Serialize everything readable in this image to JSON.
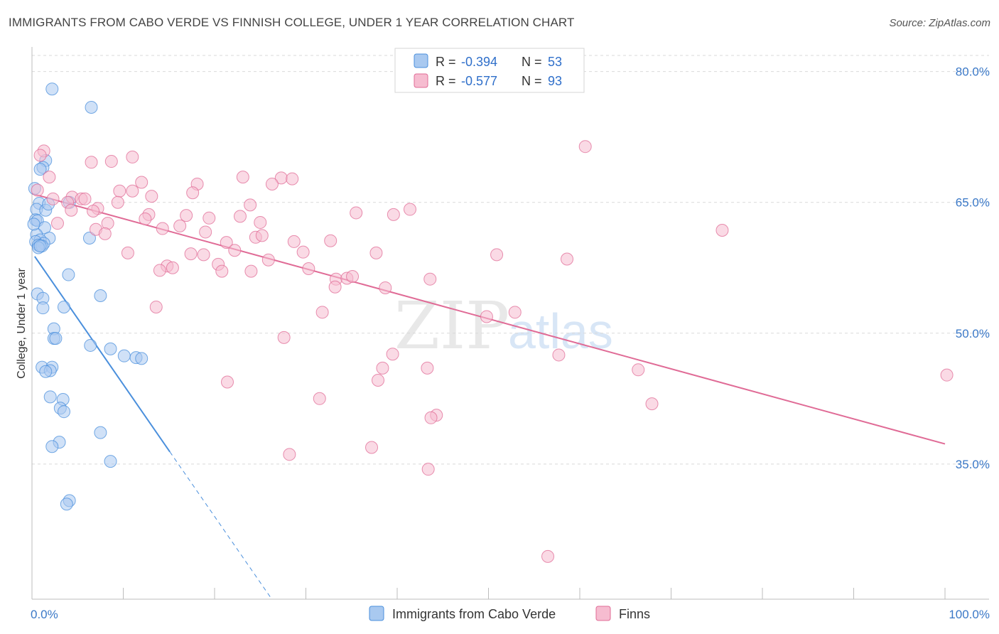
{
  "title": "IMMIGRANTS FROM CABO VERDE VS FINNISH COLLEGE, UNDER 1 YEAR CORRELATION CHART",
  "source": "Source: ZipAtlas.com",
  "watermark": {
    "zip": "ZIP",
    "atlas": "atlas"
  },
  "colors": {
    "blue": "#4a8fdc",
    "blue_fill": "#a9c9f0",
    "pink": "#e06b96",
    "pink_fill": "#f6bcd0",
    "tick": "#3a78c7",
    "grid": "#d9d9d9"
  },
  "legend_top": {
    "rows": [
      {
        "r_label": "R =",
        "r_value": "-0.394",
        "n_label": "N =",
        "n_value": "53",
        "series": "blue"
      },
      {
        "r_label": "R =",
        "r_value": "-0.577",
        "n_label": "N =",
        "n_value": "93",
        "series": "pink"
      }
    ]
  },
  "legend_bottom": [
    {
      "label": "Immigrants from Cabo Verde",
      "series": "blue"
    },
    {
      "label": "Finns",
      "series": "pink"
    }
  ],
  "chart_data": {
    "type": "scatter",
    "title": "IMMIGRANTS FROM CABO VERDE VS FINNISH COLLEGE, UNDER 1 YEAR CORRELATION CHART",
    "xlabel": "",
    "ylabel": "College, Under 1 year",
    "xlim": [
      0,
      100
    ],
    "ylim": [
      19.5,
      82.5
    ],
    "x_tick_labels": [
      {
        "value": 0,
        "label": "0.0%"
      },
      {
        "value": 100,
        "label": "100.0%"
      }
    ],
    "y_ticks": [
      {
        "value": 80,
        "label": "80.0%"
      },
      {
        "value": 65,
        "label": "65.0%"
      },
      {
        "value": 50,
        "label": "50.0%"
      },
      {
        "value": 35,
        "label": "35.0%"
      }
    ],
    "series": [
      {
        "name": "Immigrants from Cabo Verde",
        "color": "blue",
        "trend": {
          "x0": 0.3,
          "y0": 58.8,
          "x1": 15.1,
          "y1": 36.4,
          "dash_to_x": 26.2,
          "dash_to_y": 19.6
        },
        "points": [
          [
            2.2,
            78.0
          ],
          [
            6.5,
            75.9
          ],
          [
            1.5,
            69.8
          ],
          [
            1.2,
            69.0
          ],
          [
            0.9,
            68.8
          ],
          [
            0.3,
            66.6
          ],
          [
            4.1,
            65.0
          ],
          [
            0.8,
            64.9
          ],
          [
            0.5,
            64.2
          ],
          [
            1.5,
            64.1
          ],
          [
            0.4,
            63.0
          ],
          [
            0.6,
            62.9
          ],
          [
            1.4,
            62.1
          ],
          [
            0.5,
            61.3
          ],
          [
            1.9,
            60.9
          ],
          [
            6.3,
            60.9
          ],
          [
            0.9,
            60.7
          ],
          [
            0.4,
            60.5
          ],
          [
            1.3,
            60.3
          ],
          [
            0.7,
            60.1
          ],
          [
            1.1,
            60.0
          ],
          [
            0.7,
            59.8
          ],
          [
            4.0,
            56.7
          ],
          [
            0.6,
            54.5
          ],
          [
            7.5,
            54.3
          ],
          [
            1.2,
            54.0
          ],
          [
            1.2,
            52.9
          ],
          [
            3.5,
            53.0
          ],
          [
            2.4,
            50.5
          ],
          [
            2.4,
            49.4
          ],
          [
            2.6,
            49.4
          ],
          [
            6.4,
            48.6
          ],
          [
            8.6,
            48.2
          ],
          [
            10.1,
            47.4
          ],
          [
            11.4,
            47.2
          ],
          [
            12.0,
            47.1
          ],
          [
            1.1,
            46.1
          ],
          [
            2.2,
            46.1
          ],
          [
            2.0,
            45.7
          ],
          [
            1.5,
            45.6
          ],
          [
            2.0,
            42.7
          ],
          [
            3.4,
            42.4
          ],
          [
            3.1,
            41.4
          ],
          [
            3.5,
            41.0
          ],
          [
            7.5,
            38.6
          ],
          [
            3.0,
            37.5
          ],
          [
            2.2,
            37.0
          ],
          [
            8.6,
            35.3
          ],
          [
            4.1,
            30.8
          ],
          [
            3.8,
            30.4
          ],
          [
            0.2,
            62.5
          ],
          [
            1.8,
            64.8
          ],
          [
            0.9,
            60.0
          ]
        ]
      },
      {
        "name": "Finns",
        "color": "pink",
        "trend": {
          "x0": 0,
          "y0": 66.0,
          "x1": 100,
          "y1": 37.3
        },
        "points": [
          [
            1.3,
            70.9
          ],
          [
            0.9,
            70.4
          ],
          [
            8.7,
            69.7
          ],
          [
            6.5,
            69.6
          ],
          [
            11.0,
            70.2
          ],
          [
            60.6,
            71.4
          ],
          [
            1.9,
            67.9
          ],
          [
            23.1,
            67.9
          ],
          [
            27.3,
            67.8
          ],
          [
            28.5,
            67.7
          ],
          [
            12.0,
            67.3
          ],
          [
            18.1,
            67.1
          ],
          [
            26.3,
            67.1
          ],
          [
            0.6,
            66.4
          ],
          [
            9.6,
            66.3
          ],
          [
            11.0,
            66.3
          ],
          [
            13.1,
            65.7
          ],
          [
            17.6,
            66.1
          ],
          [
            4.4,
            65.6
          ],
          [
            2.3,
            65.4
          ],
          [
            5.4,
            65.4
          ],
          [
            5.8,
            65.4
          ],
          [
            3.9,
            65.0
          ],
          [
            9.4,
            65.0
          ],
          [
            23.9,
            64.7
          ],
          [
            7.2,
            64.3
          ],
          [
            4.3,
            64.1
          ],
          [
            6.7,
            64.0
          ],
          [
            35.5,
            63.8
          ],
          [
            41.4,
            64.2
          ],
          [
            39.6,
            63.6
          ],
          [
            12.8,
            63.6
          ],
          [
            16.9,
            63.5
          ],
          [
            22.8,
            63.4
          ],
          [
            19.4,
            63.2
          ],
          [
            12.4,
            63.1
          ],
          [
            2.8,
            62.6
          ],
          [
            8.3,
            62.6
          ],
          [
            25.0,
            62.7
          ],
          [
            16.2,
            62.3
          ],
          [
            7.0,
            61.9
          ],
          [
            14.3,
            62.0
          ],
          [
            19.0,
            61.6
          ],
          [
            24.5,
            61.0
          ],
          [
            25.2,
            61.2
          ],
          [
            8.0,
            61.4
          ],
          [
            21.3,
            60.4
          ],
          [
            28.7,
            60.5
          ],
          [
            32.7,
            60.6
          ],
          [
            75.6,
            61.8
          ],
          [
            22.2,
            59.5
          ],
          [
            29.7,
            59.3
          ],
          [
            37.7,
            59.2
          ],
          [
            50.9,
            59.0
          ],
          [
            17.4,
            59.1
          ],
          [
            18.8,
            59.0
          ],
          [
            10.5,
            59.2
          ],
          [
            58.6,
            58.5
          ],
          [
            25.9,
            58.4
          ],
          [
            20.4,
            57.9
          ],
          [
            14.8,
            57.7
          ],
          [
            15.4,
            57.5
          ],
          [
            14.0,
            57.2
          ],
          [
            20.8,
            57.1
          ],
          [
            24.0,
            57.1
          ],
          [
            30.3,
            57.4
          ],
          [
            33.3,
            56.2
          ],
          [
            34.5,
            56.3
          ],
          [
            35.1,
            56.5
          ],
          [
            43.6,
            56.2
          ],
          [
            33.2,
            55.3
          ],
          [
            38.7,
            55.2
          ],
          [
            13.6,
            53.0
          ],
          [
            31.8,
            52.4
          ],
          [
            52.9,
            52.4
          ],
          [
            49.8,
            51.9
          ],
          [
            27.6,
            49.5
          ],
          [
            39.5,
            47.6
          ],
          [
            57.7,
            47.5
          ],
          [
            38.4,
            46.0
          ],
          [
            43.3,
            46.0
          ],
          [
            66.4,
            45.8
          ],
          [
            100.2,
            45.2
          ],
          [
            37.9,
            44.6
          ],
          [
            21.4,
            44.4
          ],
          [
            31.5,
            42.5
          ],
          [
            67.9,
            41.9
          ],
          [
            44.3,
            40.6
          ],
          [
            43.7,
            40.3
          ],
          [
            37.2,
            36.9
          ],
          [
            28.2,
            36.1
          ],
          [
            43.4,
            34.4
          ],
          [
            56.5,
            24.4
          ]
        ]
      }
    ]
  }
}
